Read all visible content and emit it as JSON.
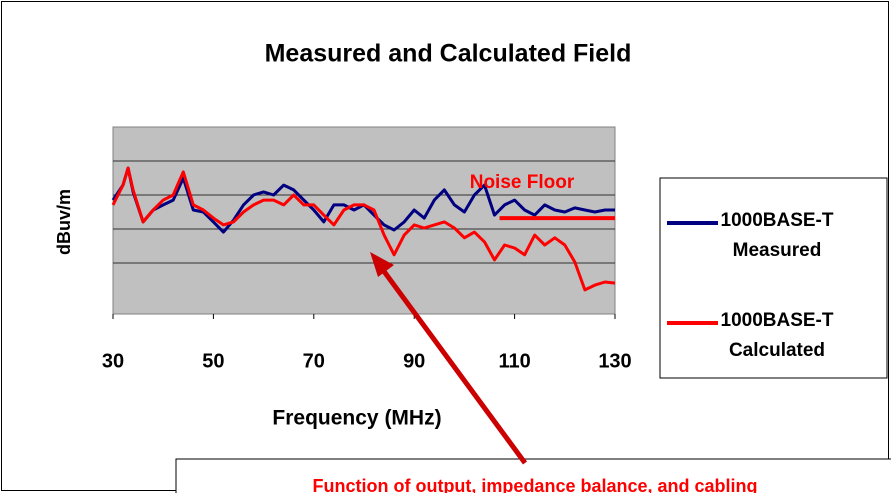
{
  "chart_data": {
    "type": "line",
    "title": "Measured and Calculated Field",
    "xlabel": "Frequency (MHz)",
    "ylabel": "dBuv/m",
    "x": [
      30,
      32,
      33,
      34,
      36,
      38,
      40,
      42,
      44,
      46,
      48,
      50,
      52,
      54,
      56,
      58,
      60,
      62,
      64,
      66,
      68,
      70,
      72,
      74,
      76,
      78,
      80,
      82,
      84,
      86,
      88,
      90,
      92,
      94,
      96,
      98,
      100,
      102,
      104,
      106,
      108,
      110,
      112,
      114,
      116,
      118,
      120,
      122,
      124,
      126,
      128,
      130
    ],
    "series": [
      {
        "name": "1000BASE-T Measured",
        "color": "#000080",
        "values": [
          33.5,
          37.9,
          42.9,
          35.9,
          27.1,
          30.6,
          32.1,
          33.5,
          40,
          30.6,
          30,
          27.1,
          24.1,
          27.6,
          32.1,
          35,
          35.9,
          35,
          37.9,
          36.5,
          33.5,
          30.6,
          27.1,
          32.1,
          32.1,
          30.6,
          32.1,
          29.1,
          26.2,
          24.7,
          27.1,
          30.6,
          28.2,
          33.5,
          36.5,
          32.1,
          30,
          35,
          37.9,
          29.1,
          32.1,
          33.5,
          30.6,
          29.1,
          32.1,
          30.6,
          30,
          31.2,
          30.6,
          30,
          30.6,
          30.6
        ]
      },
      {
        "name": "1000BASE-T Calculated",
        "color": "#ff0000",
        "values": [
          32.1,
          37.9,
          42.9,
          36.5,
          27.1,
          30.6,
          33.5,
          35,
          41.8,
          32.1,
          30.6,
          28.2,
          26.2,
          27.1,
          30,
          32.1,
          33.5,
          33.5,
          32.1,
          35,
          32.1,
          32.1,
          29.1,
          26.2,
          30.6,
          32.1,
          32.1,
          30.6,
          23.2,
          17.4,
          23.2,
          26.2,
          25.3,
          26.2,
          27.1,
          25.3,
          22.4,
          24.1,
          21.2,
          15.9,
          20.3,
          19.4,
          17.4,
          23.2,
          20.3,
          22.4,
          20.3,
          15.3,
          7.1,
          8.5,
          9.4,
          9.1
        ]
      }
    ],
    "xlim": [
      30,
      130
    ],
    "xticks": [
      30,
      50,
      70,
      90,
      110,
      130
    ],
    "ylim": [
      0,
      55
    ],
    "yticks": [
      15,
      25,
      35,
      45
    ],
    "y_tick_labels": false,
    "grid": true,
    "plot_background": "#c0c0c0",
    "legend": "right",
    "annotations": [
      {
        "text": "Noise Floor",
        "x": [
          107,
          130
        ],
        "y": 28.2,
        "color": "#ff0000"
      },
      {
        "text": "Function of output, impedance balance, and cabling",
        "color": "#ff0000"
      }
    ]
  }
}
